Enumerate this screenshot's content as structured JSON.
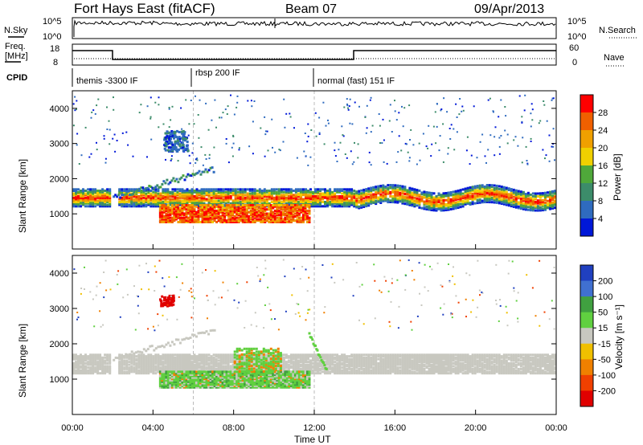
{
  "header": {
    "title": "Fort Hays East (fitACF)",
    "beam": "Beam 07",
    "date": "09/Apr/2013"
  },
  "top_panels": {
    "nsky": {
      "label": "N.Sky",
      "tick_high": "10^5",
      "tick_low": "10^0"
    },
    "nsearch": {
      "label": "N.Search",
      "tick_high": "10^5",
      "tick_low": "10^0"
    },
    "freq": {
      "label_line1": "Freq.",
      "label_line2": "[MHz]",
      "tick_high": "18",
      "tick_low": "8"
    },
    "nave": {
      "label": "Nave",
      "tick_high": "60",
      "tick_low": "0"
    },
    "cpid": {
      "label": "CPID",
      "segments": [
        {
          "text": "themis -3300 IF",
          "start_hour": 0
        },
        {
          "text": "rbsp 200 IF",
          "start_hour": 6
        },
        {
          "text": "normal (fast) 151 IF",
          "start_hour": 12
        }
      ]
    }
  },
  "chart_data": [
    {
      "type": "heatmap",
      "panel": "power",
      "ylabel": "Slant Range [km]",
      "xlim": [
        0,
        24
      ],
      "ylim": [
        0,
        4500
      ],
      "yticks": [
        1000,
        2000,
        3000,
        4000
      ],
      "colorbar": {
        "label": "Power [dB]",
        "ticks": [
          "4",
          "8",
          "12",
          "16",
          "20",
          "24",
          "28"
        ],
        "colors": [
          "#0018d8",
          "#2f6bbf",
          "#3c8c6a",
          "#4fa83a",
          "#f0d000",
          "#f0a000",
          "#f06000",
          "#ff0000"
        ]
      },
      "features": [
        {
          "name": "main band",
          "range_km": [
            1350,
            1650
          ],
          "hours": [
            0,
            24
          ],
          "level_db": 24
        },
        {
          "name": "near band",
          "range_km": [
            800,
            1300
          ],
          "hours": [
            4.3,
            11.7
          ],
          "level_db": 24
        },
        {
          "name": "rising arc",
          "range_km": [
            1500,
            2300
          ],
          "hours": [
            2,
            7
          ],
          "level_db": 10
        },
        {
          "name": "upper echoes",
          "range_km": [
            2500,
            4300
          ],
          "hours": [
            0,
            24
          ],
          "level_db": 6
        }
      ]
    },
    {
      "type": "heatmap",
      "panel": "velocity",
      "ylabel": "Slant Range [km]",
      "xlabel": "Time UT",
      "xlim": [
        0,
        24
      ],
      "ylim": [
        0,
        4500
      ],
      "xticks": [
        "00:00",
        "04:00",
        "08:00",
        "12:00",
        "16:00",
        "20:00",
        "00:00"
      ],
      "yticks": [
        1000,
        2000,
        3000,
        4000
      ],
      "colorbar": {
        "label": "Velocity [m s⁻¹]",
        "ticks": [
          "200",
          "100",
          "50",
          "15",
          "-15",
          "-50",
          "-100",
          "-200"
        ],
        "colors": [
          "#2040c0",
          "#4070d0",
          "#40a040",
          "#60d040",
          "#c8c8c0",
          "#f0c000",
          "#f08000",
          "#f04000",
          "#e00000"
        ]
      },
      "features": [
        {
          "name": "ground scatter band",
          "range_km": [
            1200,
            1700
          ],
          "hours": [
            0,
            24
          ],
          "velocity": 0
        },
        {
          "name": "green near band",
          "range_km": [
            800,
            1300
          ],
          "hours": [
            4.3,
            11.7
          ],
          "velocity": 60
        },
        {
          "name": "red patch",
          "range_km": [
            3100,
            3400
          ],
          "hours": [
            4.3,
            5.0
          ],
          "velocity": -200
        }
      ]
    }
  ]
}
